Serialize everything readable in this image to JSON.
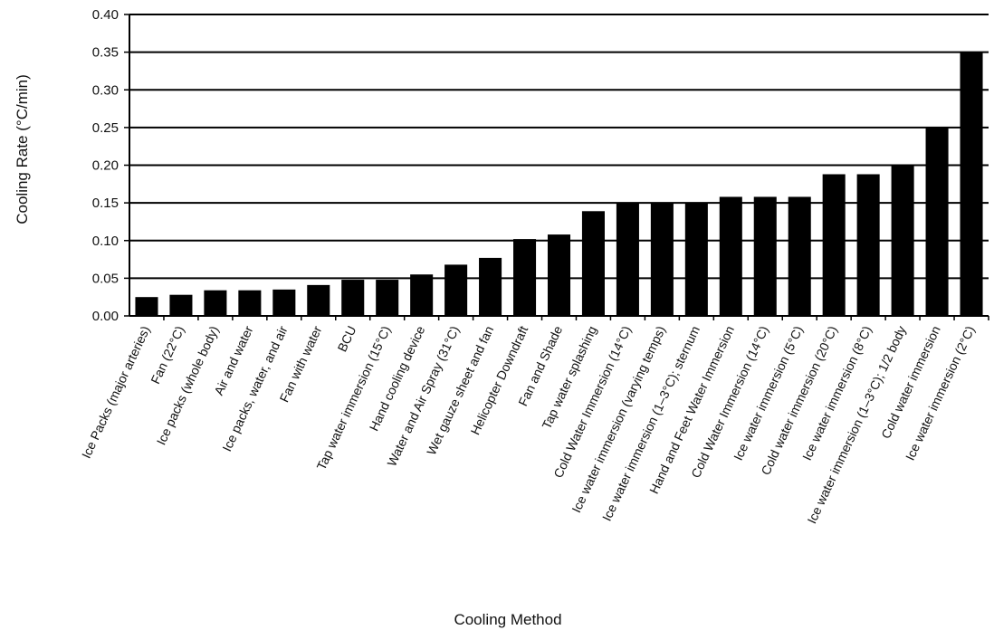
{
  "chart_data": {
    "type": "bar",
    "title": "",
    "xlabel": "Cooling Method",
    "ylabel": "Cooling Rate (°C/min)",
    "ylim": [
      0,
      0.4
    ],
    "yticks": [
      "0.00",
      "0.05",
      "0.10",
      "0.15",
      "0.20",
      "0.25",
      "0.30",
      "0.35",
      "0.40"
    ],
    "grid": "horizontal",
    "bar_color": "#000000",
    "categories": [
      "Ice Packs (major arteries)",
      "Fan (22°C)",
      "Ice packs (whole body)",
      "Air and water",
      "Ice packs, water, and air",
      "Fan with water",
      "BCU",
      "Tap water immersion (15°C)",
      "Hand cooling device",
      "Water and Air Spray (31°C)",
      "Wet gauze sheet and fan",
      "Helicopter Downdraft",
      "Fan and Shade",
      "Tap water splashing",
      "Cold Water Immersion (14°C)",
      "Ice water immersion (varying temps)",
      "Ice water immersion (1–3°C); sternum",
      "Hand and Feet Water Immersion",
      "Cold Water Immersion (14°C)",
      "Ice water immersion (5°C)",
      "Cold water immersion (20°C)",
      "Ice water immersion (8°C)",
      "Ice water immersion (1–3°C); 1/2 body",
      "Cold water immersion",
      "Ice water immersion (2°C)"
    ],
    "values": [
      0.025,
      0.028,
      0.034,
      0.034,
      0.035,
      0.041,
      0.048,
      0.048,
      0.055,
      0.068,
      0.077,
      0.102,
      0.108,
      0.139,
      0.15,
      0.15,
      0.15,
      0.158,
      0.158,
      0.158,
      0.188,
      0.188,
      0.2,
      0.25,
      0.35
    ]
  }
}
